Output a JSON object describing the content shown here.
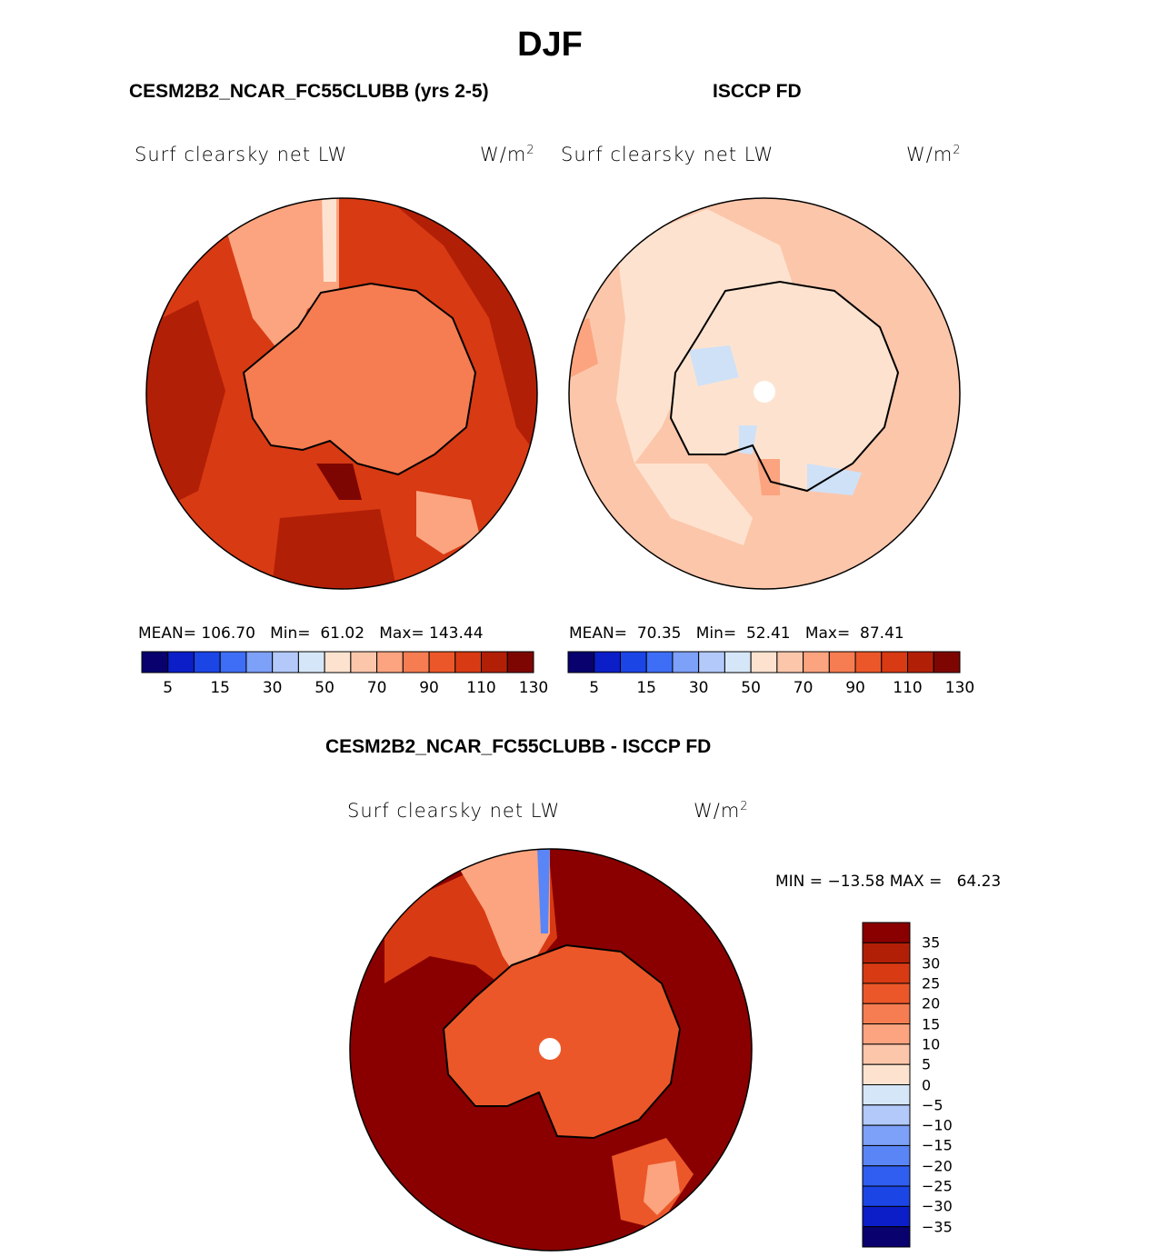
{
  "season": "DJF",
  "panels": {
    "model": {
      "title": "CESM2B2_NCAR_FC55CLUBB (yrs 2-5)",
      "variable": "Surf clearsky net LW",
      "units_base": "W/m",
      "units_exp": "2",
      "stats": {
        "mean_label": "MEAN=",
        "mean": "106.70",
        "min_label": "Min=",
        "min": "61.02",
        "max_label": "Max=",
        "max": "143.44"
      }
    },
    "obs": {
      "title": "ISCCP FD",
      "variable": "Surf clearsky net LW",
      "units_base": "W/m",
      "units_exp": "2",
      "stats": {
        "mean_label": "MEAN=",
        "mean": "70.35",
        "min_label": "Min=",
        "min": "52.41",
        "max_label": "Max=",
        "max": "87.41"
      }
    },
    "diff": {
      "title": "CESM2B2_NCAR_FC55CLUBB - ISCCP FD",
      "variable": "Surf clearsky net LW",
      "units_base": "W/m",
      "units_exp": "2",
      "minmax": "MIN = −13.58 MAX =   64.23"
    }
  },
  "colorbar_abs": {
    "colors": [
      "#08016e",
      "#0b1ec8",
      "#1c45e6",
      "#3d6ef5",
      "#7da0f8",
      "#b2c9fa",
      "#d6e6f9",
      "#fde3cf",
      "#fcc6ab",
      "#fba47f",
      "#f67d52",
      "#ec5729",
      "#d83a13",
      "#b21f07",
      "#7e0602"
    ],
    "labels": [
      "5",
      "15",
      "30",
      "50",
      "70",
      "90",
      "110",
      "130"
    ]
  },
  "colorbar_diff": {
    "colors": [
      "#8a0000",
      "#b21f07",
      "#d83a13",
      "#ec5729",
      "#f67d52",
      "#fba47f",
      "#fcc6ab",
      "#fde3cf",
      "#d6e6f9",
      "#b2c9fa",
      "#7da0f8",
      "#5a85f6",
      "#2f5ef0",
      "#1c45e6",
      "#0b1ec8",
      "#08016e"
    ],
    "labels": [
      "35",
      "30",
      "25",
      "20",
      "15",
      "10",
      "5",
      "0",
      "−5",
      "−10",
      "−15",
      "−20",
      "−25",
      "−30",
      "−35"
    ]
  },
  "map_colors": {
    "model_base": "#d83a13",
    "model_dark": "#b21f07",
    "model_land": "#f67d52",
    "model_light": "#fba47f",
    "model_darkest": "#7e0602",
    "obs_base": "#fcc6ab",
    "obs_light": "#fde3cf",
    "obs_blue": "#cfe1f7",
    "obs_mid": "#fba47f",
    "diff_base": "#8a0000",
    "diff_mid": "#d83a13",
    "diff_orange": "#ec5729",
    "diff_light": "#fba47f",
    "diff_blue": "#5a85f6"
  }
}
